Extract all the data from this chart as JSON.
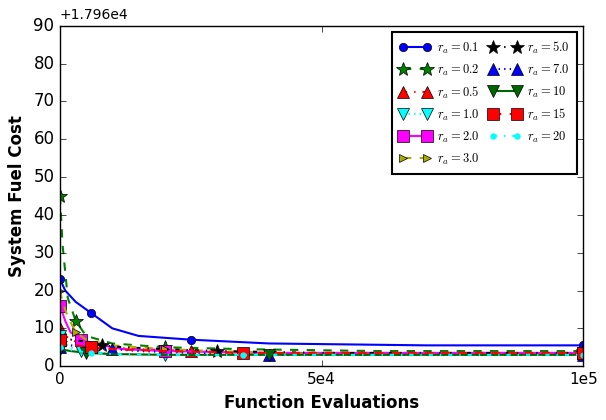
{
  "offset_text": "+1.796e4",
  "xlabel": "Function Evaluations",
  "ylabel": "System Fuel Cost",
  "xlim": [
    0,
    100000
  ],
  "ylim": [
    0,
    90
  ],
  "xticks": [
    0,
    50000,
    100000
  ],
  "xtick_labels": [
    "0",
    "5e4",
    "1e5"
  ],
  "yticks": [
    0,
    10,
    20,
    30,
    40,
    50,
    60,
    70,
    80,
    90
  ],
  "series": [
    {
      "label": "$r_a =0.1$",
      "color": "blue",
      "ls": "-",
      "marker": "o",
      "ms": 6,
      "lw": 1.5,
      "x": [
        0,
        1000,
        3000,
        6000,
        10000,
        15000,
        25000,
        40000,
        70000,
        100000
      ],
      "y": [
        23,
        20,
        17,
        14,
        10,
        8,
        7,
        6,
        5.5,
        5.5
      ],
      "mevery": [
        0,
        3,
        6,
        9
      ]
    },
    {
      "label": "$r_a =0.2$",
      "color": "green",
      "ls": "--",
      "marker": "*",
      "ms": 10,
      "lw": 1.5,
      "x": [
        0,
        500,
        1500,
        3000,
        5000,
        10000,
        20000,
        35000,
        60000,
        100000
      ],
      "y": [
        45,
        32,
        18,
        12,
        8,
        6,
        5,
        4.5,
        4,
        4
      ],
      "mevery": [
        0,
        3,
        6,
        9
      ]
    },
    {
      "label": "$r_a =0.5$",
      "color": "red",
      "ls": "-.",
      "marker": "^",
      "ms": 8,
      "lw": 1.5,
      "x": [
        0,
        1000,
        3000,
        5000,
        10000,
        15000,
        25000,
        40000,
        60000,
        100000
      ],
      "y": [
        10,
        8,
        6.5,
        5.5,
        5,
        4.5,
        4,
        3.5,
        3.5,
        3.5
      ],
      "mevery": [
        0,
        3,
        6,
        9
      ]
    },
    {
      "label": "$r_a =1.0$",
      "color": "cyan",
      "ls": ":",
      "marker": "v",
      "ms": 8,
      "lw": 1.5,
      "x": [
        0,
        1000,
        2000,
        4000,
        8000,
        12000,
        20000,
        40000,
        60000,
        100000
      ],
      "y": [
        8,
        6,
        5,
        4,
        3.5,
        3.2,
        3,
        3,
        3,
        3
      ],
      "mevery": [
        0,
        3,
        6,
        9
      ]
    },
    {
      "label": "$r_a =2.0$",
      "color": "magenta",
      "ls": "-",
      "marker": "s",
      "ms": 8,
      "lw": 1.5,
      "x": [
        0,
        1000,
        2000,
        4000,
        8000,
        12000,
        20000,
        40000,
        60000,
        100000
      ],
      "y": [
        16,
        12,
        9,
        7,
        5.5,
        4.5,
        4,
        3.5,
        3.5,
        3.5
      ],
      "mevery": [
        0,
        3,
        6,
        9
      ]
    },
    {
      "label": "$r_a =3.0$",
      "color": "#aaaa00",
      "ls": "--",
      "marker": ">",
      "ms": 6,
      "lw": 1.5,
      "x": [
        0,
        500,
        1500,
        3000,
        5000,
        10000,
        20000,
        40000,
        60000,
        100000
      ],
      "y": [
        20,
        17,
        13,
        9,
        7,
        5.5,
        4.5,
        3.5,
        3,
        3
      ],
      "mevery": [
        0,
        3,
        6,
        9
      ]
    },
    {
      "label": "$r_a =5.0$",
      "color": "black",
      "ls": "-.",
      "marker": "*",
      "ms": 10,
      "lw": 1.5,
      "x": [
        0,
        2000,
        5000,
        8000,
        12000,
        20000,
        30000,
        50000,
        75000,
        100000
      ],
      "y": [
        6,
        7,
        6.5,
        5.5,
        5,
        4.5,
        4,
        3.5,
        3.5,
        3.5
      ],
      "mevery": [
        0,
        3,
        6,
        9
      ]
    },
    {
      "label": "$r_a =7.0$",
      "color": "blue",
      "ls": ":",
      "marker": "^",
      "ms": 8,
      "lw": 1.5,
      "x": [
        0,
        2000,
        5000,
        10000,
        15000,
        25000,
        40000,
        60000,
        80000,
        100000
      ],
      "y": [
        5,
        5.5,
        5,
        4.5,
        4,
        3.5,
        3,
        3,
        3,
        3
      ],
      "mevery": [
        0,
        3,
        6,
        9
      ]
    },
    {
      "label": "$r_a =10$",
      "color": "#006600",
      "ls": "-",
      "marker": "v",
      "ms": 8,
      "lw": 1.5,
      "x": [
        0,
        2000,
        5000,
        10000,
        20000,
        40000,
        60000,
        80000,
        100000
      ],
      "y": [
        4.5,
        4,
        3.5,
        3.2,
        3,
        3,
        3,
        3,
        3
      ],
      "mevery": [
        0,
        2,
        5,
        8
      ]
    },
    {
      "label": "$r_a =15$",
      "color": "red",
      "ls": "--",
      "marker": "s",
      "ms": 8,
      "lw": 1.5,
      "x": [
        0,
        1000,
        3000,
        6000,
        10000,
        20000,
        35000,
        60000,
        80000,
        100000
      ],
      "y": [
        7,
        6,
        5.5,
        5,
        4.5,
        4,
        3.5,
        3.5,
        3.5,
        3.5
      ],
      "mevery": [
        0,
        3,
        6,
        9
      ]
    },
    {
      "label": "$r_a =20$",
      "color": "cyan",
      "ls": "-.",
      "marker": ".",
      "ms": 8,
      "lw": 1.5,
      "x": [
        0,
        1000,
        3000,
        6000,
        10000,
        20000,
        35000,
        60000,
        80000,
        100000
      ],
      "y": [
        5,
        4.5,
        4,
        3.5,
        3.2,
        3,
        3,
        3,
        3,
        3
      ],
      "mevery": [
        0,
        3,
        6,
        9
      ]
    }
  ]
}
